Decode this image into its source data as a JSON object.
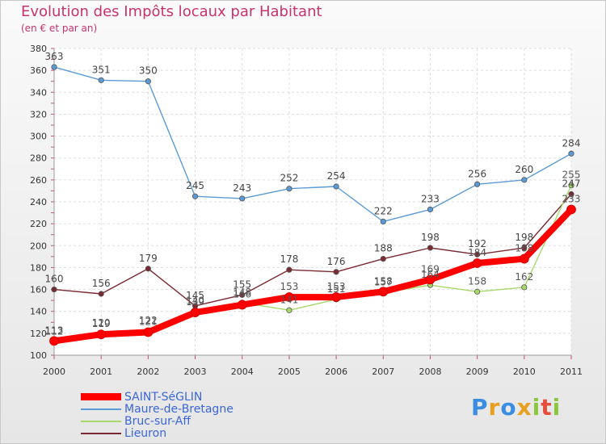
{
  "header": {
    "title": "Evolution des Impôts locaux par Habitant",
    "subtitle": "(en € et par an)"
  },
  "logo": {
    "text": "Proxiti"
  },
  "chart_data": {
    "type": "line",
    "x": [
      "2000",
      "2001",
      "2002",
      "2003",
      "2004",
      "2005",
      "2006",
      "2007",
      "2008",
      "2009",
      "2010",
      "2011"
    ],
    "ylim": [
      100,
      380
    ],
    "yticks": [
      100,
      120,
      140,
      160,
      180,
      200,
      220,
      240,
      260,
      280,
      300,
      320,
      340,
      360,
      380
    ],
    "grid": true,
    "legend_position": "bottom-left",
    "series": [
      {
        "name": "Maure-de-Bretagne",
        "color": "#5b9bd5",
        "values": [
          363,
          351,
          350,
          245,
          243,
          252,
          254,
          222,
          233,
          256,
          260,
          284
        ]
      },
      {
        "name": "Lieuron",
        "color": "#7a2a32",
        "values": [
          160,
          156,
          179,
          145,
          155,
          178,
          176,
          188,
          198,
          192,
          198,
          247
        ]
      },
      {
        "name": "Bruc-sur-Aff",
        "color": "#a6d96a",
        "values": [
          112,
          120,
          122,
          140,
          148,
          141,
          151,
          157,
          164,
          158,
          162,
          255
        ]
      },
      {
        "name": "SAINT-SéGLIN",
        "color": "#ff0000",
        "values": [
          113,
          119,
          121,
          139,
          146,
          153,
          153,
          158,
          169,
          184,
          188,
          233
        ]
      }
    ],
    "legend_order": [
      "SAINT-SéGLIN",
      "Maure-de-Bretagne",
      "Bruc-sur-Aff",
      "Lieuron"
    ]
  }
}
